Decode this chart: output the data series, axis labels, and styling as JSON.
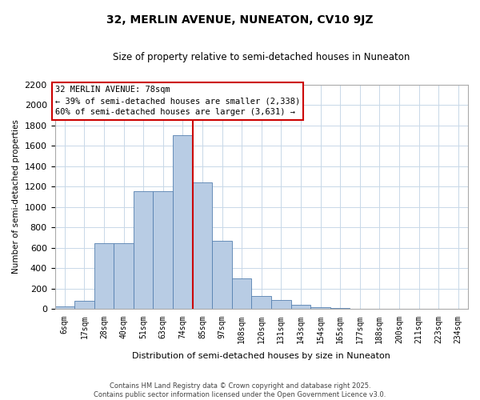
{
  "title": "32, MERLIN AVENUE, NUNEATON, CV10 9JZ",
  "subtitle": "Size of property relative to semi-detached houses in Nuneaton",
  "xlabel": "Distribution of semi-detached houses by size in Nuneaton",
  "ylabel": "Number of semi-detached properties",
  "bin_labels": [
    "6sqm",
    "17sqm",
    "28sqm",
    "40sqm",
    "51sqm",
    "63sqm",
    "74sqm",
    "85sqm",
    "97sqm",
    "108sqm",
    "120sqm",
    "131sqm",
    "143sqm",
    "154sqm",
    "165sqm",
    "177sqm",
    "188sqm",
    "200sqm",
    "211sqm",
    "223sqm",
    "234sqm"
  ],
  "bin_counts": [
    20,
    80,
    645,
    645,
    1150,
    1150,
    1700,
    1240,
    670,
    300,
    125,
    90,
    40,
    15,
    5,
    2,
    1,
    1,
    0,
    0,
    0
  ],
  "bar_color": "#b8cce4",
  "bar_edge_color": "#5580b0",
  "vline_color": "#cc0000",
  "annotation_title": "32 MERLIN AVENUE: 78sqm",
  "annotation_line1": "← 39% of semi-detached houses are smaller (2,338)",
  "annotation_line2": "60% of semi-detached houses are larger (3,631) →",
  "annotation_box_color": "white",
  "annotation_box_edge": "#cc0000",
  "ylim": [
    0,
    2200
  ],
  "yticks": [
    0,
    200,
    400,
    600,
    800,
    1000,
    1200,
    1400,
    1600,
    1800,
    2000,
    2200
  ],
  "footer_line1": "Contains HM Land Registry data © Crown copyright and database right 2025.",
  "footer_line2": "Contains public sector information licensed under the Open Government Licence v3.0.",
  "bg_color": "#ffffff",
  "grid_color": "#c8d8e8"
}
